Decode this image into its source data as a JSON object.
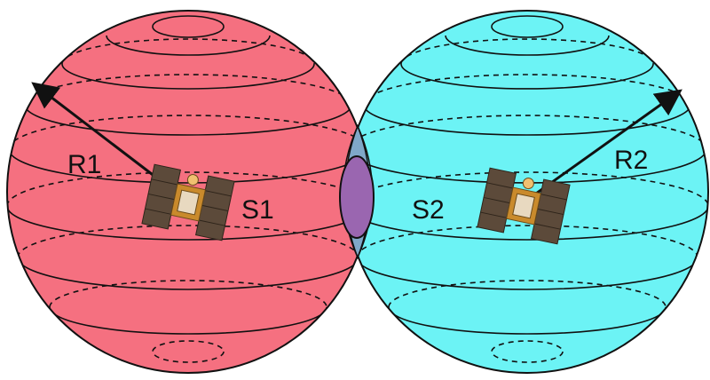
{
  "labels": {
    "radius_left": "R1",
    "radius_right": "R2",
    "satellite_left": "S1",
    "satellite_right": "S2"
  },
  "colors": {
    "sphere_left": "#f57080",
    "sphere_right": "#6cf3f5",
    "overlap": "#7fa8c8",
    "inner_ellipse": "#9a66b0",
    "line": "#111111",
    "satellite_panel": "#5c4a3a",
    "satellite_body": "#c98a2c"
  },
  "icons": {
    "satellite": "satellite-icon",
    "arrow": "arrow-icon"
  }
}
